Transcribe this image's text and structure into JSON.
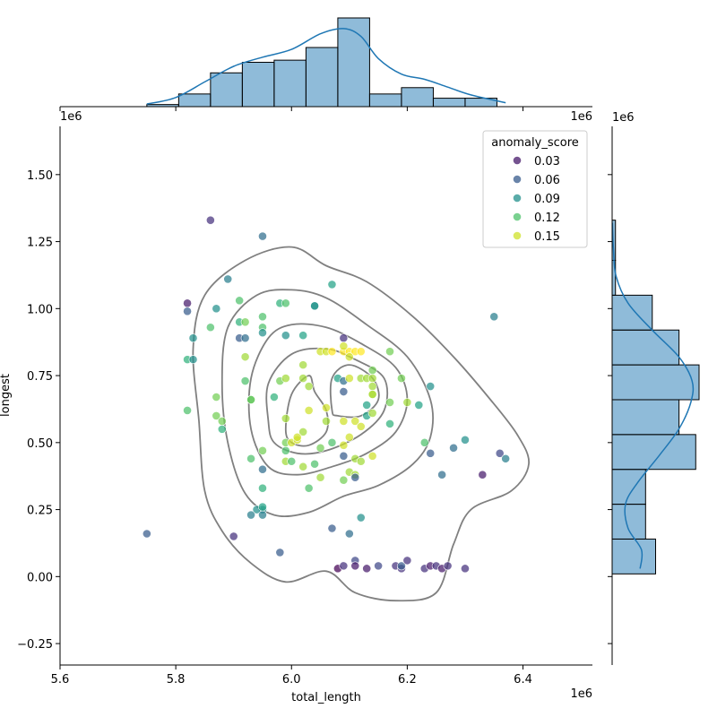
{
  "chart_data": {
    "type": "scatter",
    "xlabel": "total_length",
    "ylabel": "longest",
    "x_offset_label": "1e6",
    "y_offset_label": "1e6",
    "x_ticks": [
      5.6,
      5.8,
      6.0,
      6.2,
      6.4
    ],
    "x_tick_labels": [
      "5.6",
      "5.8",
      "6.0",
      "6.2",
      "6.4"
    ],
    "y_ticks": [
      -0.25,
      0.0,
      0.25,
      0.5,
      0.75,
      1.0,
      1.25,
      1.5
    ],
    "y_tick_labels": [
      "−0.25",
      "0.00",
      "0.25",
      "0.50",
      "0.75",
      "1.00",
      "1.25",
      "1.50"
    ],
    "xlim": [
      5.6,
      6.52
    ],
    "ylim": [
      -0.33,
      1.68
    ],
    "legend": {
      "title": "anomaly_score",
      "position": "top-right",
      "entries": [
        {
          "label": "0.03",
          "value": 0.03
        },
        {
          "label": "0.06",
          "value": 0.06
        },
        {
          "label": "0.09",
          "value": 0.09
        },
        {
          "label": "0.12",
          "value": 0.12
        },
        {
          "label": "0.15",
          "value": 0.15
        }
      ]
    },
    "hue_range": [
      0.02,
      0.16
    ],
    "colormap": [
      "#440154",
      "#482878",
      "#3e4989",
      "#31688e",
      "#26828e",
      "#1f9e89",
      "#35b779",
      "#6ece58",
      "#b5de2b",
      "#fde725"
    ],
    "points": [
      [
        5.75,
        0.16,
        0.06
      ],
      [
        5.86,
        1.33,
        0.04
      ],
      [
        5.82,
        1.02,
        0.03
      ],
      [
        5.82,
        0.99,
        0.06
      ],
      [
        5.89,
        1.11,
        0.08
      ],
      [
        5.95,
        1.27,
        0.07
      ],
      [
        5.82,
        0.81,
        0.11
      ],
      [
        5.83,
        0.81,
        0.09
      ],
      [
        5.83,
        0.89,
        0.09
      ],
      [
        5.87,
        1.0,
        0.09
      ],
      [
        5.86,
        0.93,
        0.12
      ],
      [
        5.91,
        1.03,
        0.12
      ],
      [
        5.91,
        0.95,
        0.11
      ],
      [
        5.92,
        0.95,
        0.13
      ],
      [
        5.91,
        0.89,
        0.06
      ],
      [
        5.92,
        0.89,
        0.07
      ],
      [
        5.92,
        0.82,
        0.14
      ],
      [
        5.92,
        0.73,
        0.12
      ],
      [
        5.93,
        0.66,
        0.11
      ],
      [
        5.93,
        0.66,
        0.13
      ],
      [
        5.87,
        0.67,
        0.13
      ],
      [
        5.87,
        0.6,
        0.13
      ],
      [
        5.88,
        0.58,
        0.13
      ],
      [
        5.88,
        0.55,
        0.11
      ],
      [
        5.82,
        0.62,
        0.12
      ],
      [
        5.93,
        0.44,
        0.12
      ],
      [
        5.95,
        0.47,
        0.13
      ],
      [
        5.95,
        0.4,
        0.07
      ],
      [
        5.95,
        0.33,
        0.11
      ],
      [
        5.95,
        0.25,
        0.09
      ],
      [
        5.94,
        0.25,
        0.09
      ],
      [
        5.95,
        0.23,
        0.08
      ],
      [
        5.95,
        0.26,
        0.1
      ],
      [
        5.93,
        0.23,
        0.08
      ],
      [
        5.95,
        0.93,
        0.12
      ],
      [
        5.95,
        0.97,
        0.12
      ],
      [
        5.95,
        0.91,
        0.09
      ],
      [
        5.98,
        1.02,
        0.11
      ],
      [
        5.99,
        1.02,
        0.12
      ],
      [
        5.99,
        0.9,
        0.09
      ],
      [
        5.97,
        0.67,
        0.11
      ],
      [
        5.98,
        0.73,
        0.13
      ],
      [
        5.99,
        0.74,
        0.14
      ],
      [
        5.99,
        0.59,
        0.14
      ],
      [
        5.99,
        0.47,
        0.12
      ],
      [
        5.99,
        0.43,
        0.14
      ],
      [
        5.99,
        0.5,
        0.13
      ],
      [
        6.0,
        0.5,
        0.15
      ],
      [
        6.0,
        0.43,
        0.12
      ],
      [
        6.01,
        0.51,
        0.15
      ],
      [
        6.02,
        0.54,
        0.14
      ],
      [
        6.01,
        0.52,
        0.15
      ],
      [
        6.02,
        0.74,
        0.14
      ],
      [
        6.02,
        0.79,
        0.14
      ],
      [
        6.03,
        0.62,
        0.15
      ],
      [
        6.03,
        0.71,
        0.14
      ],
      [
        6.02,
        0.9,
        0.1
      ],
      [
        6.04,
        1.01,
        0.1
      ],
      [
        6.04,
        1.01,
        0.09
      ],
      [
        6.07,
        1.09,
        0.1
      ],
      [
        6.05,
        0.84,
        0.15
      ],
      [
        6.06,
        0.84,
        0.15
      ],
      [
        6.07,
        0.84,
        0.16
      ],
      [
        6.09,
        0.84,
        0.16
      ],
      [
        6.1,
        0.84,
        0.16
      ],
      [
        6.11,
        0.84,
        0.16
      ],
      [
        6.12,
        0.84,
        0.16
      ],
      [
        6.08,
        0.74,
        0.1
      ],
      [
        6.09,
        0.73,
        0.07
      ],
      [
        6.09,
        0.69,
        0.06
      ],
      [
        6.1,
        0.74,
        0.15
      ],
      [
        6.09,
        0.89,
        0.04
      ],
      [
        6.09,
        0.86,
        0.15
      ],
      [
        6.1,
        0.82,
        0.15
      ],
      [
        6.12,
        0.74,
        0.14
      ],
      [
        6.13,
        0.74,
        0.14
      ],
      [
        6.14,
        0.74,
        0.14
      ],
      [
        6.14,
        0.77,
        0.13
      ],
      [
        6.14,
        0.71,
        0.14
      ],
      [
        6.14,
        0.68,
        0.15
      ],
      [
        6.14,
        0.68,
        0.14
      ],
      [
        6.13,
        0.64,
        0.1
      ],
      [
        6.13,
        0.6,
        0.1
      ],
      [
        6.14,
        0.61,
        0.14
      ],
      [
        6.17,
        0.65,
        0.13
      ],
      [
        6.17,
        0.57,
        0.11
      ],
      [
        6.17,
        0.84,
        0.13
      ],
      [
        6.19,
        0.74,
        0.13
      ],
      [
        6.2,
        0.65,
        0.14
      ],
      [
        6.22,
        0.64,
        0.1
      ],
      [
        6.24,
        0.71,
        0.09
      ],
      [
        6.23,
        0.5,
        0.12
      ],
      [
        6.24,
        0.46,
        0.06
      ],
      [
        6.26,
        0.38,
        0.07
      ],
      [
        6.28,
        0.48,
        0.07
      ],
      [
        6.3,
        0.51,
        0.09
      ],
      [
        6.33,
        0.38,
        0.03
      ],
      [
        6.35,
        0.97,
        0.08
      ],
      [
        6.36,
        0.46,
        0.05
      ],
      [
        6.37,
        0.44,
        0.08
      ],
      [
        6.06,
        0.63,
        0.15
      ],
      [
        6.06,
        0.58,
        0.14
      ],
      [
        6.07,
        0.5,
        0.12
      ],
      [
        6.09,
        0.45,
        0.06
      ],
      [
        6.09,
        0.49,
        0.15
      ],
      [
        6.09,
        0.58,
        0.15
      ],
      [
        6.1,
        0.52,
        0.15
      ],
      [
        6.11,
        0.58,
        0.15
      ],
      [
        6.12,
        0.56,
        0.15
      ],
      [
        6.1,
        0.39,
        0.14
      ],
      [
        6.11,
        0.38,
        0.14
      ],
      [
        6.11,
        0.44,
        0.14
      ],
      [
        6.11,
        0.37,
        0.06
      ],
      [
        6.12,
        0.43,
        0.14
      ],
      [
        6.14,
        0.45,
        0.15
      ],
      [
        6.09,
        0.36,
        0.13
      ],
      [
        6.05,
        0.48,
        0.13
      ],
      [
        6.05,
        0.37,
        0.14
      ],
      [
        6.04,
        0.42,
        0.12
      ],
      [
        6.03,
        0.33,
        0.12
      ],
      [
        6.02,
        0.41,
        0.14
      ],
      [
        6.07,
        0.18,
        0.06
      ],
      [
        6.1,
        0.16,
        0.07
      ],
      [
        6.12,
        0.22,
        0.09
      ],
      [
        5.98,
        0.09,
        0.06
      ],
      [
        5.9,
        0.15,
        0.04
      ],
      [
        6.08,
        0.03,
        0.02
      ],
      [
        6.09,
        0.04,
        0.04
      ],
      [
        6.11,
        0.06,
        0.05
      ],
      [
        6.11,
        0.04,
        0.03
      ],
      [
        6.13,
        0.03,
        0.03
      ],
      [
        6.15,
        0.04,
        0.05
      ],
      [
        6.18,
        0.04,
        0.04
      ],
      [
        6.19,
        0.03,
        0.04
      ],
      [
        6.19,
        0.04,
        0.06
      ],
      [
        6.2,
        0.06,
        0.04
      ],
      [
        6.23,
        0.03,
        0.04
      ],
      [
        6.24,
        0.04,
        0.03
      ],
      [
        6.25,
        0.04,
        0.04
      ],
      [
        6.26,
        0.03,
        0.03
      ],
      [
        6.27,
        0.04,
        0.04
      ],
      [
        6.3,
        0.03,
        0.04
      ]
    ],
    "contours": [
      [
        [
          5.85,
          0.32
        ],
        [
          5.84,
          0.58
        ],
        [
          5.83,
          0.85
        ],
        [
          5.85,
          1.05
        ],
        [
          5.92,
          1.18
        ],
        [
          6.0,
          1.23
        ],
        [
          6.06,
          1.16
        ],
        [
          6.13,
          1.1
        ],
        [
          6.21,
          0.97
        ],
        [
          6.28,
          0.82
        ],
        [
          6.34,
          0.67
        ],
        [
          6.39,
          0.53
        ],
        [
          6.41,
          0.42
        ],
        [
          6.38,
          0.32
        ],
        [
          6.31,
          0.25
        ],
        [
          6.28,
          0.12
        ],
        [
          6.25,
          -0.06
        ],
        [
          6.18,
          -0.09
        ],
        [
          6.11,
          -0.06
        ],
        [
          6.06,
          0.02
        ],
        [
          5.99,
          -0.02
        ],
        [
          5.93,
          0.05
        ],
        [
          5.88,
          0.17
        ],
        [
          5.85,
          0.32
        ]
      ],
      [
        [
          5.89,
          0.5
        ],
        [
          5.88,
          0.72
        ],
        [
          5.89,
          0.93
        ],
        [
          5.94,
          1.05
        ],
        [
          6.0,
          1.07
        ],
        [
          6.06,
          1.04
        ],
        [
          6.13,
          0.94
        ],
        [
          6.2,
          0.82
        ],
        [
          6.24,
          0.66
        ],
        [
          6.24,
          0.52
        ],
        [
          6.21,
          0.42
        ],
        [
          6.15,
          0.34
        ],
        [
          6.09,
          0.3
        ],
        [
          6.03,
          0.24
        ],
        [
          5.97,
          0.23
        ],
        [
          5.92,
          0.31
        ],
        [
          5.89,
          0.5
        ]
      ],
      [
        [
          5.93,
          0.55
        ],
        [
          5.93,
          0.74
        ],
        [
          5.96,
          0.89
        ],
        [
          6.0,
          0.94
        ],
        [
          6.06,
          0.93
        ],
        [
          6.12,
          0.87
        ],
        [
          6.18,
          0.78
        ],
        [
          6.2,
          0.66
        ],
        [
          6.18,
          0.54
        ],
        [
          6.13,
          0.46
        ],
        [
          6.07,
          0.41
        ],
        [
          6.01,
          0.38
        ],
        [
          5.96,
          0.41
        ],
        [
          5.93,
          0.55
        ]
      ],
      [
        [
          5.96,
          0.58
        ],
        [
          5.96,
          0.72
        ],
        [
          6.0,
          0.83
        ],
        [
          6.06,
          0.85
        ],
        [
          6.11,
          0.81
        ],
        [
          6.16,
          0.74
        ],
        [
          6.16,
          0.62
        ],
        [
          6.12,
          0.53
        ],
        [
          6.06,
          0.47
        ],
        [
          6.01,
          0.46
        ],
        [
          5.97,
          0.5
        ],
        [
          5.96,
          0.58
        ]
      ],
      [
        [
          5.99,
          0.55
        ],
        [
          6.0,
          0.68
        ],
        [
          6.03,
          0.75
        ],
        [
          6.04,
          0.69
        ],
        [
          6.06,
          0.62
        ],
        [
          6.06,
          0.54
        ],
        [
          6.03,
          0.49
        ],
        [
          6.0,
          0.5
        ],
        [
          5.99,
          0.55
        ]
      ],
      [
        [
          6.07,
          0.62
        ],
        [
          6.07,
          0.74
        ],
        [
          6.1,
          0.79
        ],
        [
          6.14,
          0.74
        ],
        [
          6.15,
          0.66
        ],
        [
          6.12,
          0.6
        ],
        [
          6.08,
          0.6
        ],
        [
          6.07,
          0.62
        ]
      ]
    ],
    "x_histogram": {
      "bin_edges": [
        5.75,
        5.805,
        5.86,
        5.915,
        5.97,
        6.025,
        6.08,
        6.135,
        6.19,
        6.245,
        6.3,
        6.355
      ],
      "counts": [
        1,
        6,
        16,
        21,
        22,
        28,
        42,
        6,
        9,
        4,
        4
      ]
    },
    "y_histogram": {
      "bin_edges": [
        0.01,
        0.14,
        0.27,
        0.4,
        0.53,
        0.66,
        0.79,
        0.92,
        1.05,
        1.18,
        1.33
      ],
      "counts": [
        13,
        10,
        10,
        25,
        20,
        26,
        20,
        12,
        1,
        1
      ]
    },
    "kde_x": [
      [
        5.75,
        0.2
      ],
      [
        5.8,
        0.7
      ],
      [
        5.85,
        1.9
      ],
      [
        5.9,
        3.1
      ],
      [
        5.95,
        3.8
      ],
      [
        6.0,
        4.4
      ],
      [
        6.05,
        5.6
      ],
      [
        6.09,
        6.0
      ],
      [
        6.12,
        5.4
      ],
      [
        6.15,
        3.7
      ],
      [
        6.19,
        2.5
      ],
      [
        6.23,
        2.1
      ],
      [
        6.27,
        1.5
      ],
      [
        6.31,
        0.9
      ],
      [
        6.37,
        0.3
      ]
    ],
    "kde_y": [
      [
        0.03,
        2.1
      ],
      [
        0.1,
        2.2
      ],
      [
        0.18,
        1.2
      ],
      [
        0.27,
        1.0
      ],
      [
        0.35,
        1.9
      ],
      [
        0.45,
        3.5
      ],
      [
        0.55,
        5.0
      ],
      [
        0.65,
        5.9
      ],
      [
        0.73,
        6.0
      ],
      [
        0.82,
        5.0
      ],
      [
        0.92,
        3.0
      ],
      [
        1.02,
        1.2
      ],
      [
        1.12,
        0.3
      ],
      [
        1.22,
        0.1
      ],
      [
        1.32,
        0.02
      ]
    ]
  }
}
